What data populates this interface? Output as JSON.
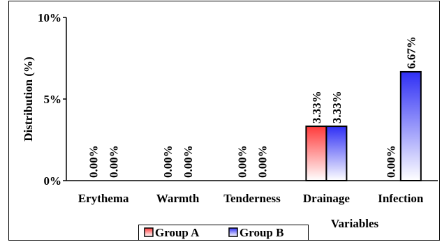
{
  "chart_data": {
    "type": "bar",
    "categories": [
      "Erythema",
      "Warmth",
      "Tenderness",
      "Drainage",
      "Infection"
    ],
    "series": [
      {
        "name": "Group A",
        "values": [
          0,
          0,
          0,
          3.33,
          0
        ],
        "labels": [
          "0.00%",
          "0.00%",
          "0.00%",
          "3.33%",
          "0.00%"
        ],
        "color": "#ff3b3b"
      },
      {
        "name": "Group B",
        "values": [
          0,
          0,
          0,
          3.33,
          6.67
        ],
        "labels": [
          "0.00%",
          "0.00%",
          "0.00%",
          "3.33%",
          "6.67%"
        ],
        "color": "#2f2ff5"
      }
    ],
    "ylabel": "Distribution (%)",
    "xlabel": "Variables",
    "ylim": [
      0,
      10
    ],
    "yticks": [
      {
        "value": 0,
        "label": "0%"
      },
      {
        "value": 5,
        "label": "5%"
      },
      {
        "value": 10,
        "label": "10%"
      }
    ],
    "grid": false,
    "legend": "bottom-center"
  }
}
